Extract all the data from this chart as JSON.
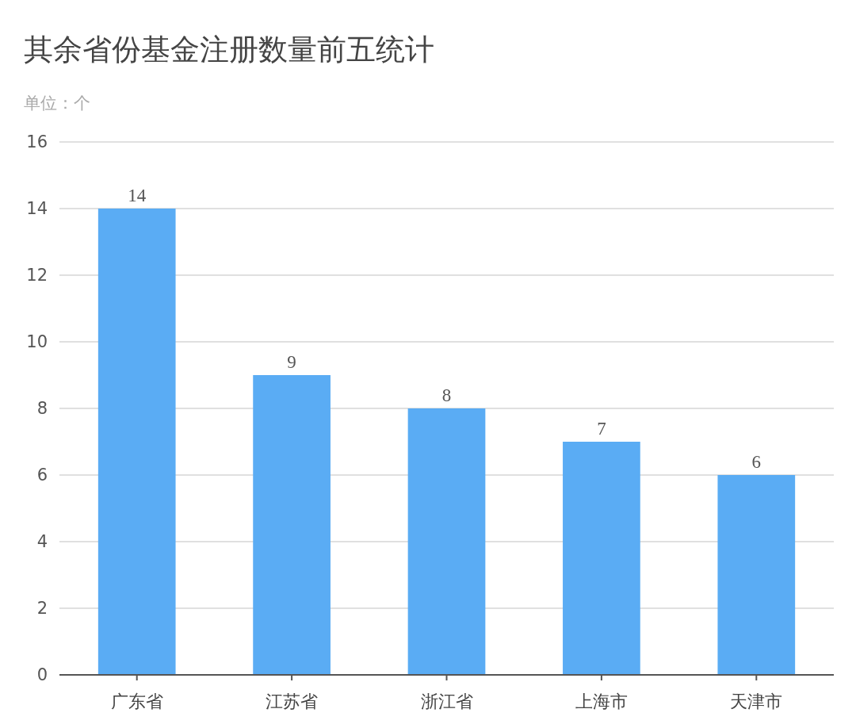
{
  "chart_data": {
    "type": "bar",
    "title": "其余省份基金注册数量前五统计",
    "ylabel": "单位：个",
    "categories": [
      "广东省",
      "江苏省",
      "浙江省",
      "上海市",
      "天津市"
    ],
    "values": [
      14,
      9,
      8,
      7,
      6
    ],
    "color": "#5aacf4",
    "ylim": [
      0,
      16
    ],
    "yticks": [
      0,
      2,
      4,
      6,
      8,
      10,
      12,
      14,
      16
    ],
    "grid": "y",
    "data_labels": true
  }
}
